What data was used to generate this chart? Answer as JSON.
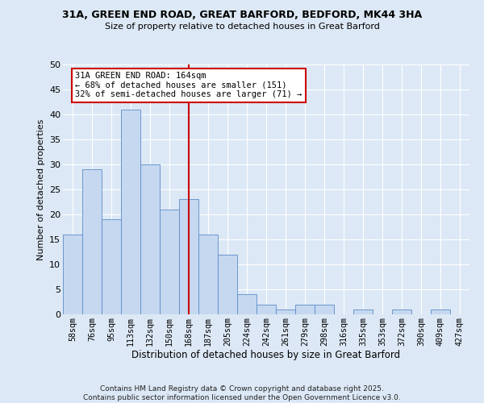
{
  "title1": "31A, GREEN END ROAD, GREAT BARFORD, BEDFORD, MK44 3HA",
  "title2": "Size of property relative to detached houses in Great Barford",
  "xlabel": "Distribution of detached houses by size in Great Barford",
  "ylabel": "Number of detached properties",
  "categories": [
    "58sqm",
    "76sqm",
    "95sqm",
    "113sqm",
    "132sqm",
    "150sqm",
    "168sqm",
    "187sqm",
    "205sqm",
    "224sqm",
    "242sqm",
    "261sqm",
    "279sqm",
    "298sqm",
    "316sqm",
    "335sqm",
    "353sqm",
    "372sqm",
    "390sqm",
    "409sqm",
    "427sqm"
  ],
  "values": [
    16,
    29,
    19,
    41,
    30,
    21,
    23,
    16,
    12,
    4,
    2,
    1,
    2,
    2,
    0,
    1,
    0,
    1,
    0,
    1,
    0
  ],
  "bar_color": "#c5d8f0",
  "bar_edge_color": "#5b8cc8",
  "vline_x": 6,
  "vline_color": "#cc0000",
  "annotation_text": "31A GREEN END ROAD: 164sqm\n← 68% of detached houses are smaller (151)\n32% of semi-detached houses are larger (71) →",
  "annotation_box_color": "#ffffff",
  "annotation_box_edge": "#cc0000",
  "ylim": [
    0,
    50
  ],
  "yticks": [
    0,
    5,
    10,
    15,
    20,
    25,
    30,
    35,
    40,
    45,
    50
  ],
  "bg_color": "#dce8f5",
  "grid_color": "#ffffff",
  "footer": "Contains HM Land Registry data © Crown copyright and database right 2025.\nContains public sector information licensed under the Open Government Licence v3.0."
}
